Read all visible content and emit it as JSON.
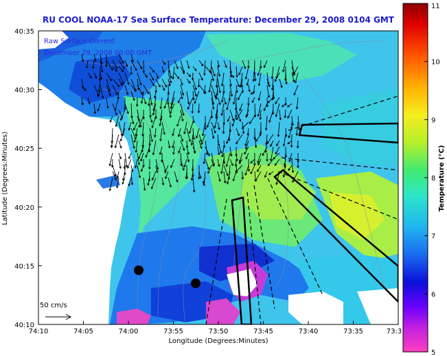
{
  "title": "RU COOL  NOAA-17  Sea Surface Temperature:  December 29, 2008 0104 GMT",
  "legend": {
    "line1": "Raw Surface Current",
    "line2": "December 29, 2008 00:00 GMT"
  },
  "scale_label": "50 cm/s",
  "x_axis": {
    "label": "Longitude (Degrees:Minutes)",
    "ticks": [
      "74:10",
      "74:05",
      "74:00",
      "73:55",
      "73:50",
      "73:45",
      "73:40",
      "73:35",
      "73:3"
    ]
  },
  "y_axis": {
    "label": "Latitude (Degrees:Minutes)",
    "ticks": [
      "40:35",
      "40:30",
      "40:25",
      "40:20",
      "40:15",
      "40:10"
    ]
  },
  "colorbar": {
    "label": "Temperature (°C)",
    "ticks": [
      "11",
      "10",
      "9",
      "8",
      "7",
      "6",
      "5"
    ]
  },
  "colors": {
    "title": "#1a1ad0",
    "land": "#ffffff",
    "water_base": "#3fc4ec"
  }
}
